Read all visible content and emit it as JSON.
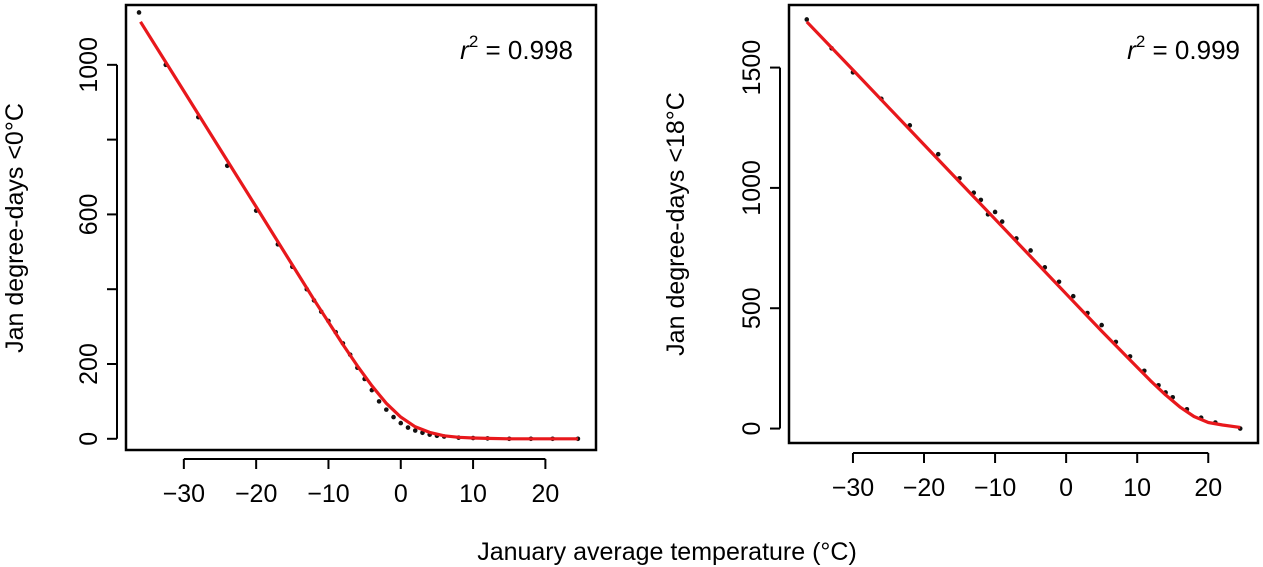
{
  "shared_xlabel": "January average temperature (°C)",
  "chart_data": [
    {
      "type": "scatter",
      "ylabel": "Jan degree-days <0°C",
      "annotation": {
        "r": "r",
        "exp": "2",
        "rest": " = 0.998"
      },
      "xlim": [
        -38,
        27
      ],
      "ylim": [
        -30,
        1160
      ],
      "xticks": [
        -30,
        -20,
        -10,
        0,
        10,
        20
      ],
      "yticks": [
        0,
        200,
        600,
        1000
      ],
      "yminor_ticks": [
        400,
        800
      ],
      "series": [
        {
          "kind": "points",
          "color": "#111111",
          "x": [
            -36.2,
            -32.5,
            -28.0,
            -24.0,
            -20.0,
            -17.0,
            -15.0,
            -13.0,
            -12.0,
            -11.0,
            -10.0,
            -9.0,
            -8.0,
            -7.0,
            -6.0,
            -5.0,
            -4.0,
            -3.0,
            -2.0,
            -1.0,
            0.0,
            1.0,
            2.0,
            3.0,
            4.0,
            5.0,
            6.0,
            8.0,
            10.0,
            12.0,
            15.0,
            18.0,
            21.0,
            24.5
          ],
          "y": [
            1140,
            1000,
            860,
            730,
            610,
            520,
            460,
            400,
            370,
            340,
            315,
            285,
            255,
            225,
            190,
            160,
            130,
            100,
            78,
            58,
            42,
            30,
            22,
            16,
            11,
            8,
            6,
            3,
            2,
            1,
            0,
            0,
            0,
            0
          ]
        },
        {
          "kind": "fit",
          "color": "#e8181c",
          "x": [
            -36,
            -30,
            -25,
            -20,
            -15,
            -12,
            -10,
            -8,
            -6,
            -4,
            -2,
            0,
            2,
            4,
            6,
            8,
            10,
            12,
            15,
            20,
            24.5
          ],
          "y": [
            1115,
            930,
            775,
            620,
            465,
            372,
            312,
            252,
            195,
            142,
            95,
            58,
            32,
            17,
            8,
            4,
            2,
            1,
            0,
            0,
            0
          ]
        }
      ]
    },
    {
      "type": "scatter",
      "ylabel": "Jan degree-days <18°C",
      "annotation": {
        "r": "r",
        "exp": "2",
        "rest": " = 0.999"
      },
      "xlim": [
        -39,
        27
      ],
      "ylim": [
        -60,
        1760
      ],
      "xticks": [
        -30,
        -20,
        -10,
        0,
        10,
        20
      ],
      "yticks": [
        0,
        500,
        1000,
        1500
      ],
      "yminor_ticks": [],
      "series": [
        {
          "kind": "points",
          "color": "#111111",
          "x": [
            -36.5,
            -33.0,
            -30.0,
            -26.0,
            -22.0,
            -18.0,
            -15.0,
            -13.0,
            -12.0,
            -11.0,
            -10.0,
            -9.0,
            -7.0,
            -5.0,
            -3.0,
            -1.0,
            1.0,
            3.0,
            5.0,
            7.0,
            9.0,
            11.0,
            13.0,
            14.0,
            15.0,
            17.0,
            19.0,
            21.0,
            24.5
          ],
          "y": [
            1700,
            1580,
            1480,
            1370,
            1260,
            1140,
            1040,
            980,
            950,
            890,
            900,
            860,
            790,
            740,
            670,
            610,
            550,
            480,
            430,
            360,
            300,
            240,
            180,
            150,
            130,
            80,
            45,
            25,
            0
          ]
        },
        {
          "kind": "fit",
          "color": "#e8181c",
          "x": [
            -36.5,
            -30,
            -25,
            -20,
            -15,
            -10,
            -5,
            0,
            5,
            10,
            12,
            14,
            16,
            18,
            20,
            22,
            24.5
          ],
          "y": [
            1690,
            1490,
            1335,
            1180,
            1025,
            870,
            715,
            560,
            405,
            255,
            195,
            140,
            90,
            50,
            25,
            15,
            5
          ]
        }
      ]
    }
  ]
}
